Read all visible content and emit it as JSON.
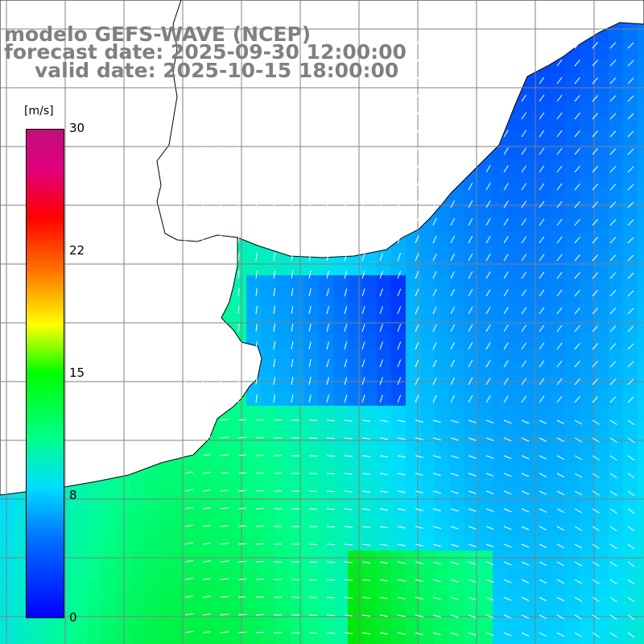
{
  "title": {
    "model": "modelo GEFS-WAVE (NCEP)",
    "forecast": "forecast date: 2025-09-30 12:00:00",
    "valid": "valid date: 2025-10-15 18:00:00"
  },
  "colorbar": {
    "unit": "[m/s]",
    "ticks": [
      "30",
      "22",
      "15",
      "8",
      "0"
    ],
    "range": [
      0,
      30
    ]
  },
  "colors": {
    "land": "#ffffff",
    "coast": "#000000",
    "grid": "#808080",
    "arrows": "#ffffff"
  }
}
